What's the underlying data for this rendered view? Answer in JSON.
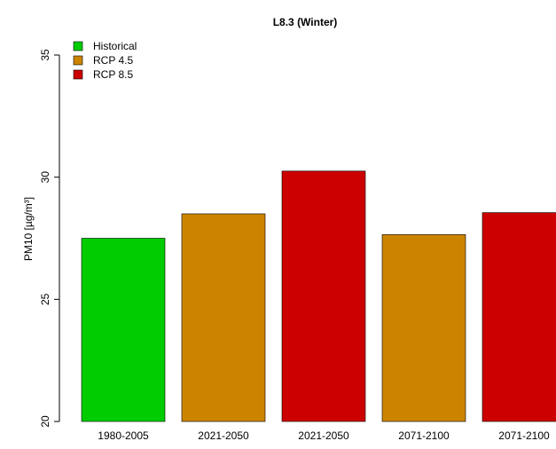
{
  "chart_data": {
    "type": "bar",
    "title": "L8.3 (Winter)",
    "ylabel": "PM10 [µg/m³]",
    "xlabel": "",
    "categories": [
      "1980-2005",
      "2021-2050",
      "2021-2050",
      "2071-2100",
      "2071-2100"
    ],
    "values": [
      27.5,
      28.5,
      30.25,
      27.65,
      28.55
    ],
    "bar_series": [
      "Historical",
      "RCP 4.5",
      "RCP 8.5",
      "RCP 4.5",
      "RCP 8.5"
    ],
    "ylim": [
      20,
      35
    ],
    "yticks": [
      20,
      25,
      30,
      35
    ],
    "grid": false,
    "legend": {
      "position": "top-left",
      "entries": [
        {
          "name": "Historical",
          "color": "#00cc00"
        },
        {
          "name": "RCP 4.5",
          "color": "#cc8400"
        },
        {
          "name": "RCP 8.5",
          "color": "#cc0000"
        }
      ]
    }
  }
}
